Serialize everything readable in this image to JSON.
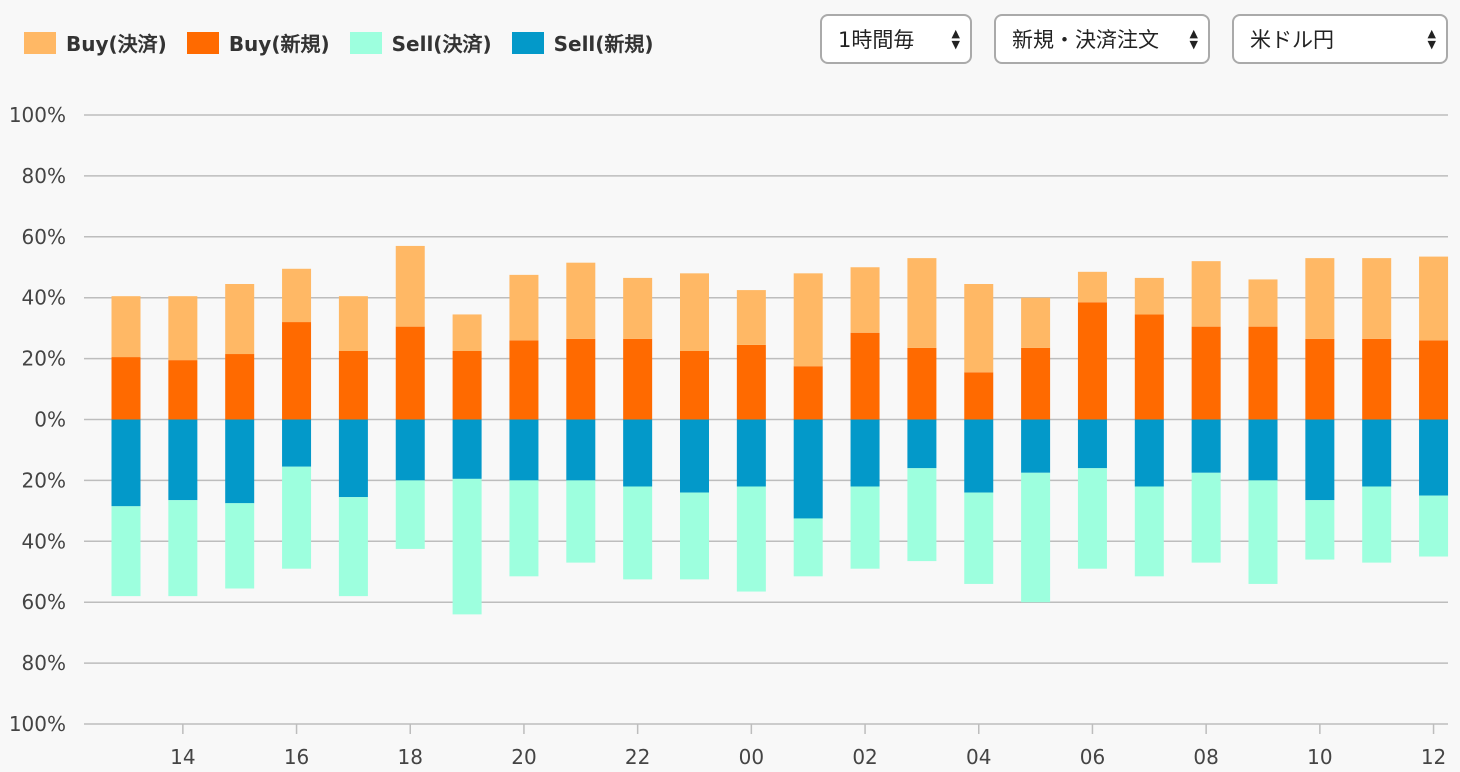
{
  "legend": [
    {
      "label": "Buy(決済)",
      "color": "#ffb865"
    },
    {
      "label": "Buy(新規)",
      "color": "#ff6a00"
    },
    {
      "label": "Sell(決済)",
      "color": "#9dffde"
    },
    {
      "label": "Sell(新規)",
      "color": "#0399c9"
    }
  ],
  "selects": {
    "interval": "1時間毎",
    "order_type": "新規・決済注文",
    "pair": "米ドル円"
  },
  "chart_data": {
    "type": "bar",
    "stacked": true,
    "categories": [
      "13",
      "14",
      "15",
      "16",
      "17",
      "18",
      "19",
      "20",
      "21",
      "22",
      "23",
      "00",
      "01",
      "02",
      "03",
      "04",
      "05",
      "06",
      "07",
      "08",
      "09",
      "10",
      "11",
      "12"
    ],
    "x_tick_labels": [
      "14",
      "16",
      "18",
      "20",
      "22",
      "00",
      "02",
      "04",
      "06",
      "08",
      "10",
      "12"
    ],
    "y_tick_labels": [
      "100%",
      "80%",
      "60%",
      "40%",
      "20%",
      "0%",
      "20%",
      "40%",
      "60%",
      "80%",
      "100%"
    ],
    "ylim": [
      -100,
      100
    ],
    "grid": true,
    "legend_position": "top-left",
    "series": [
      {
        "name": "Buy(新規)",
        "color": "#ff6a00",
        "values": [
          20.5,
          19.5,
          21.5,
          32,
          22.5,
          30.5,
          22.5,
          26,
          26.5,
          26.5,
          22.5,
          24.5,
          17.5,
          28.5,
          23.5,
          15.5,
          23.5,
          38.5,
          34.5,
          30.5,
          30.5,
          26.5,
          26.5,
          26
        ]
      },
      {
        "name": "Buy(決済)",
        "color": "#ffb865",
        "values": [
          20,
          21,
          23,
          17.5,
          18,
          26.5,
          12,
          21.5,
          25,
          20,
          25.5,
          18,
          30.5,
          21.5,
          29.5,
          29,
          16.5,
          10,
          12,
          21.5,
          15.5,
          26.5,
          26.5,
          27.5
        ]
      },
      {
        "name": "Sell(新規)",
        "color": "#0399c9",
        "values": [
          -28.5,
          -26.5,
          -27.5,
          -15.5,
          -25.5,
          -20,
          -19.5,
          -20,
          -20,
          -22,
          -24,
          -22,
          -32.5,
          -22,
          -16,
          -24,
          -17.5,
          -16,
          -22,
          -17.5,
          -20,
          -26.5,
          -22,
          -25
        ]
      },
      {
        "name": "Sell(決済)",
        "color": "#9dffde",
        "values": [
          -29.5,
          -31.5,
          -28,
          -33.5,
          -32.5,
          -22.5,
          -44.5,
          -31.5,
          -27,
          -30.5,
          -28.5,
          -34.5,
          -19,
          -27,
          -30.5,
          -30,
          -42.5,
          -33,
          -29.5,
          -29.5,
          -34,
          -19.5,
          -25,
          -20
        ]
      }
    ]
  }
}
